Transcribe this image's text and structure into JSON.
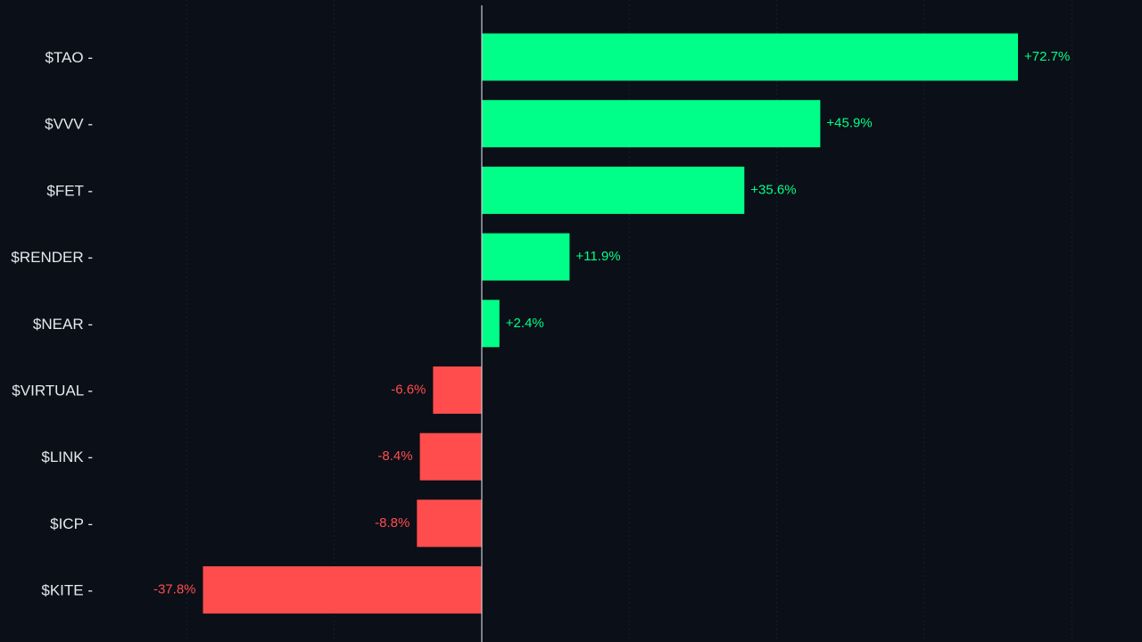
{
  "chart_data": {
    "type": "bar",
    "orientation": "horizontal",
    "categories": [
      "$TAO",
      "$VVV",
      "$FET",
      "$RENDER",
      "$NEAR",
      "$VIRTUAL",
      "$LINK",
      "$ICP",
      "$KITE"
    ],
    "values": [
      72.7,
      45.9,
      35.6,
      11.9,
      2.4,
      -6.6,
      -8.4,
      -8.8,
      -37.8
    ],
    "value_labels": [
      "+72.7%",
      "+45.9%",
      "+35.6%",
      "+11.9%",
      "+2.4%",
      "-6.6%",
      "-8.4%",
      "-8.8%",
      "-37.8%"
    ],
    "xlim": [
      -65,
      90
    ],
    "grid": true,
    "colors": {
      "positive": "#00ff88",
      "negative": "#ff4d4d",
      "background": "#0b0f17",
      "label": "#e6e8ee"
    }
  }
}
